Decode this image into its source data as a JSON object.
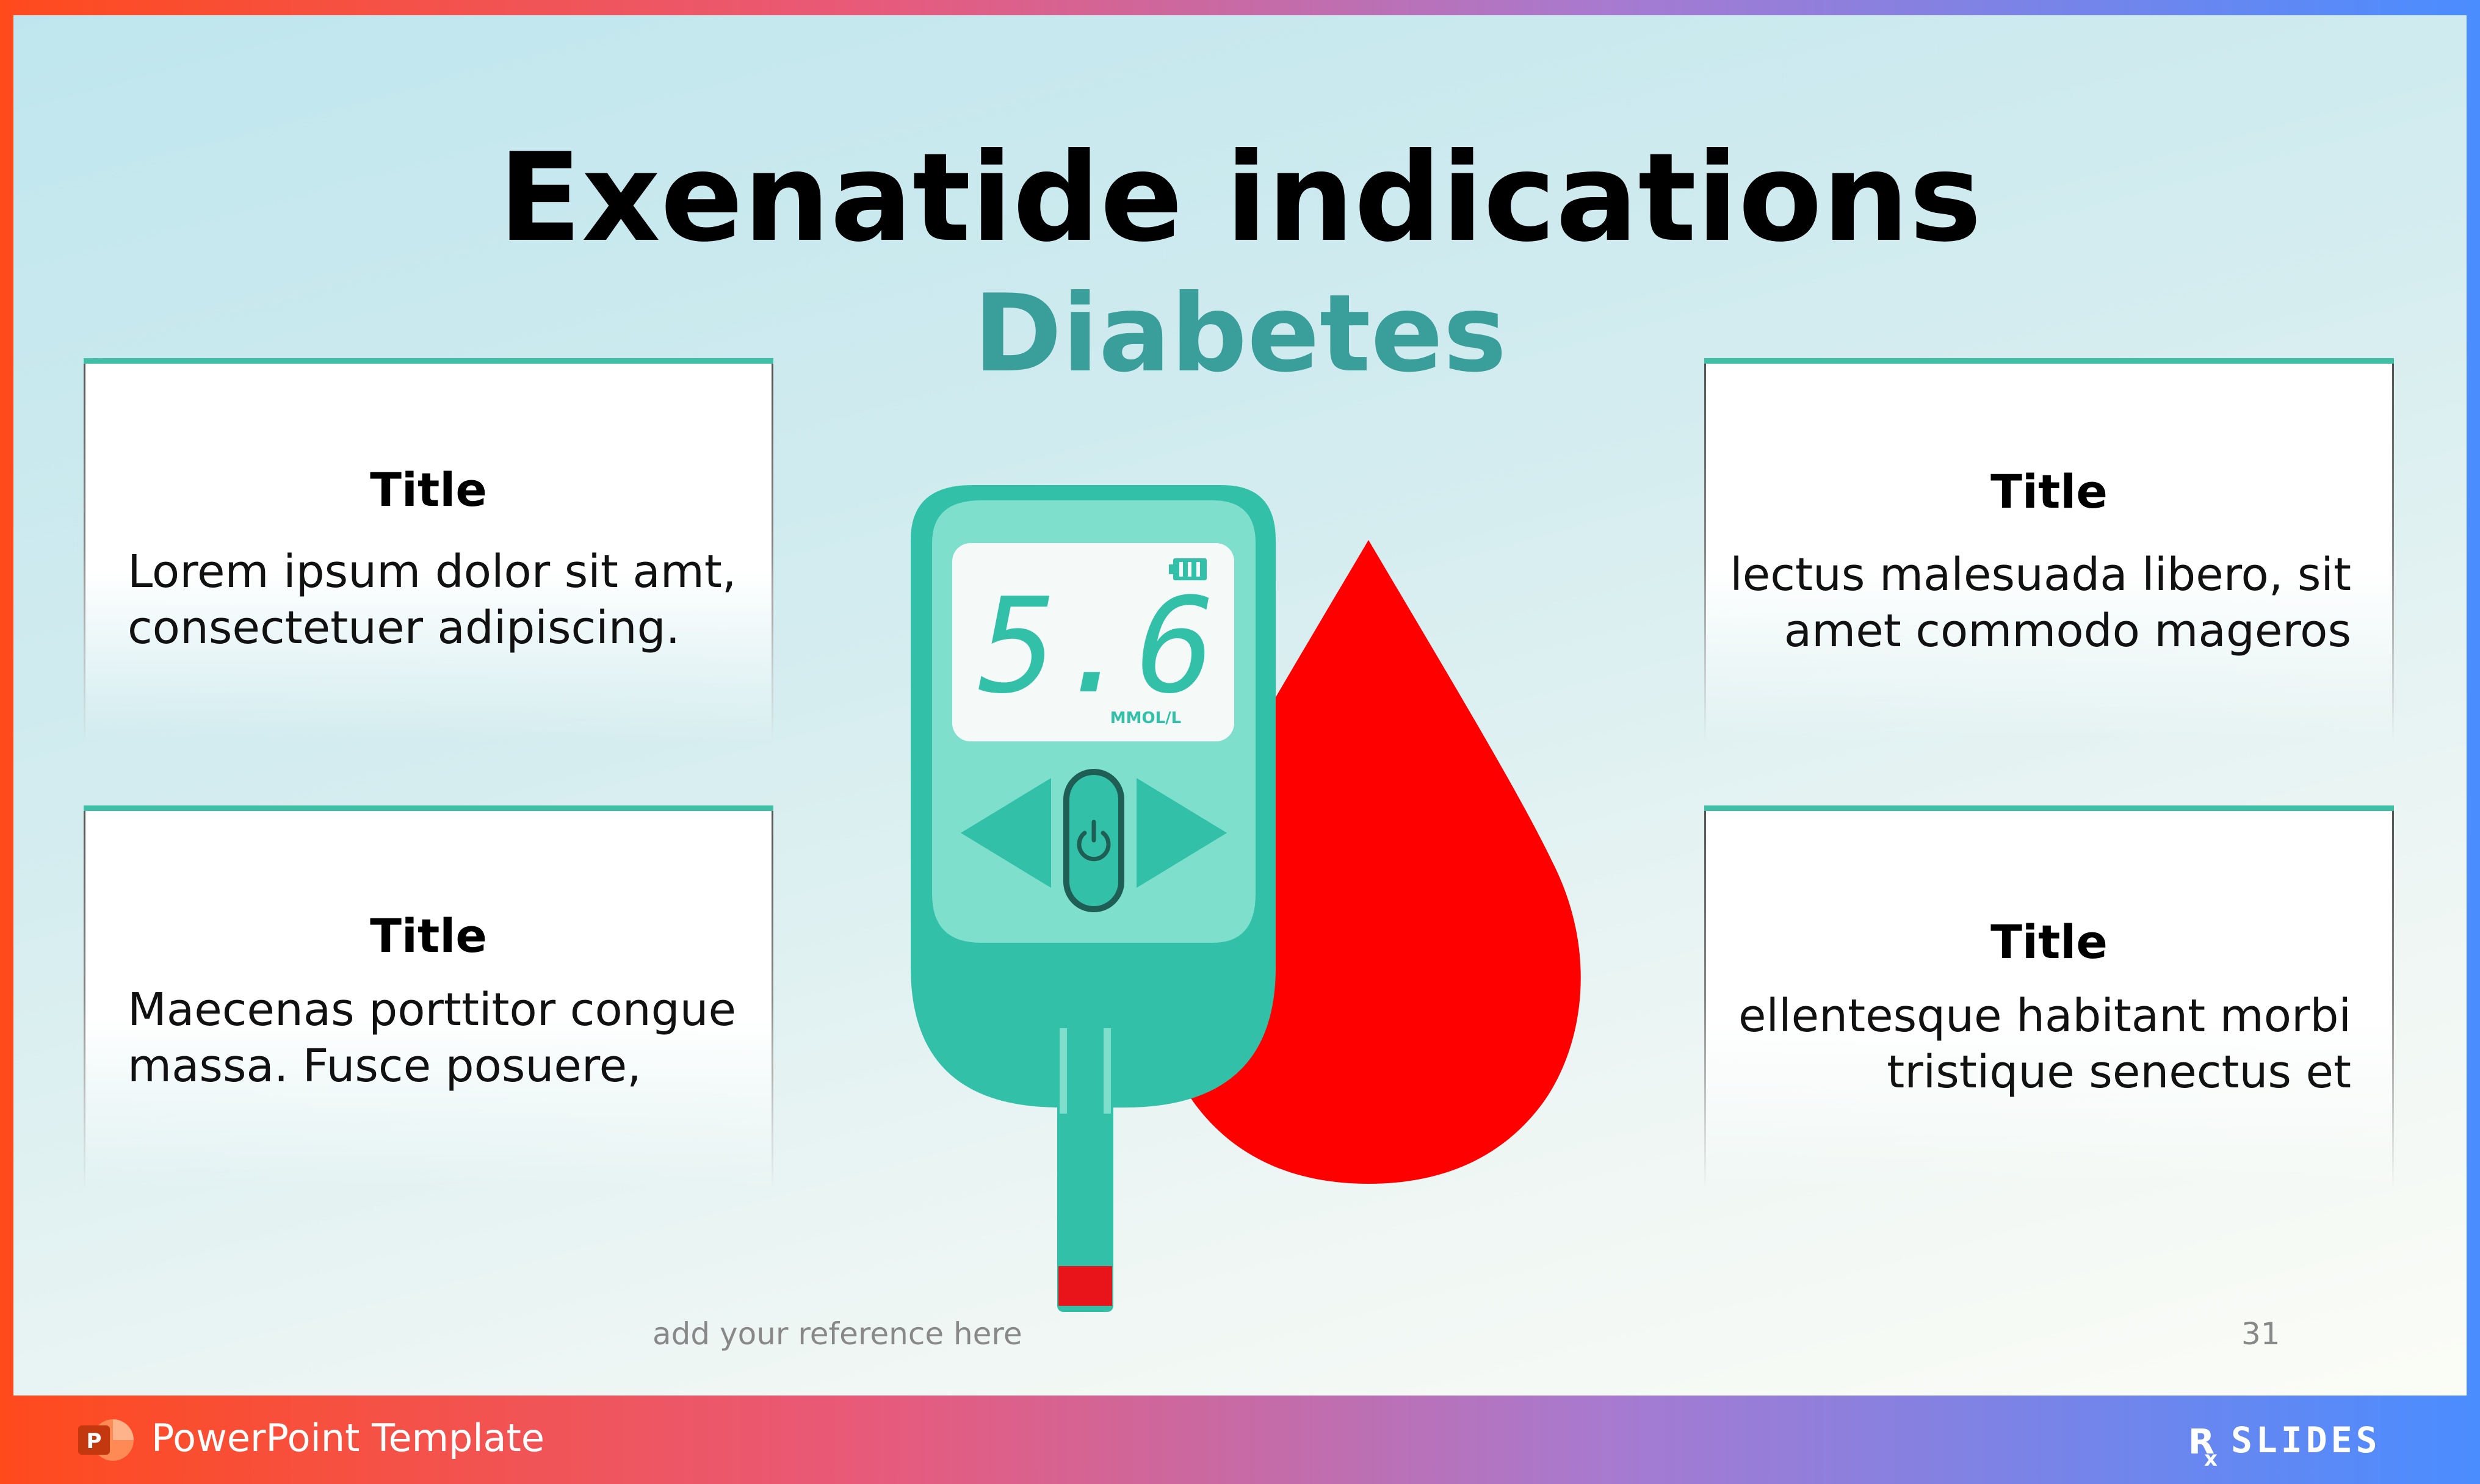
{
  "slide": {
    "title": "Exenatide indications",
    "subtitle": "Diabetes",
    "reference": "add your reference here",
    "page_number": "31"
  },
  "cards": [
    {
      "title": "Title",
      "lines": [
        "Lorem ipsum dolor sit amt,",
        "consectetuer adipiscing."
      ]
    },
    {
      "title": "Title",
      "lines": [
        "Maecenas porttitor congue",
        "massa. Fusce posuere,"
      ]
    },
    {
      "title": "Title",
      "lines": [
        "lectus malesuada libero, sit",
        "amet commodo mageros"
      ]
    },
    {
      "title": "Title",
      "lines": [
        "ellentesque habitant morbi",
        "tristique senectus et"
      ]
    }
  ],
  "meter": {
    "reading": "5.6",
    "unit": "MMOL/L",
    "body_color": "#30c4aa",
    "screen_color": "#f5faf9",
    "drop_color": "#ff0000"
  },
  "footer": {
    "label": "PowerPoint Template",
    "app_icon_letter": "P",
    "brand": "RxSLIDES"
  },
  "icons": [
    "powerpoint-icon",
    "power-icon",
    "battery-icon",
    "left-arrow-icon",
    "right-arrow-icon",
    "blood-drop-icon"
  ]
}
